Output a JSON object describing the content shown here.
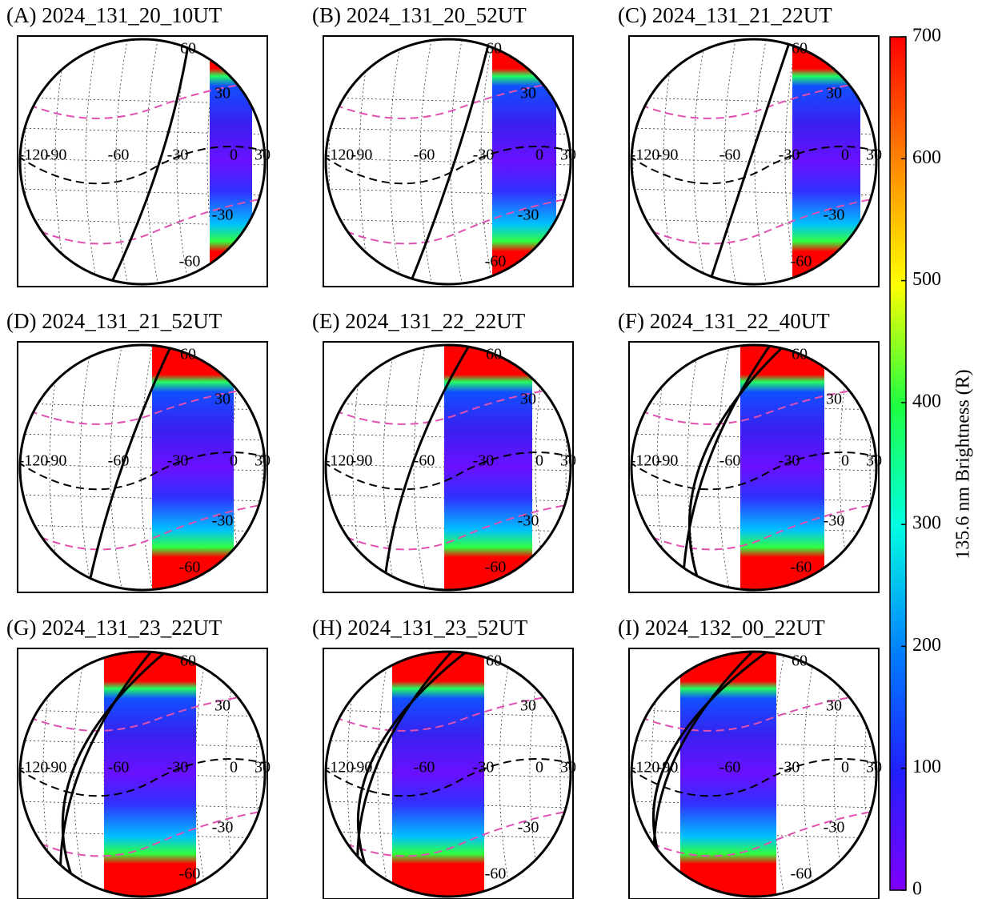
{
  "chart_data": {
    "type": "map",
    "panels": [
      {
        "title": "(A) 2024_131_20_10UT"
      },
      {
        "title": "(B) 2024_131_20_52UT"
      },
      {
        "title": "(C) 2024_131_21_22UT"
      },
      {
        "title": "(D) 2024_131_21_52UT"
      },
      {
        "title": "(E) 2024_131_22_22UT"
      },
      {
        "title": "(F) 2024_131_22_40UT"
      },
      {
        "title": "(G) 2024_131_23_22UT"
      },
      {
        "title": "(H) 2024_131_23_52UT"
      },
      {
        "title": "(I) 2024_132_00_22UT"
      }
    ],
    "lon_labels": [
      -120,
      -90,
      -60,
      -30,
      0,
      30
    ],
    "lat_labels": [
      60,
      30,
      -30,
      -60
    ],
    "colorbar": {
      "label": "135.6 nm Brightness (R)",
      "ylim": [
        0,
        700
      ],
      "yticks": [
        0,
        100,
        200,
        300,
        400,
        500,
        600,
        700
      ]
    }
  }
}
